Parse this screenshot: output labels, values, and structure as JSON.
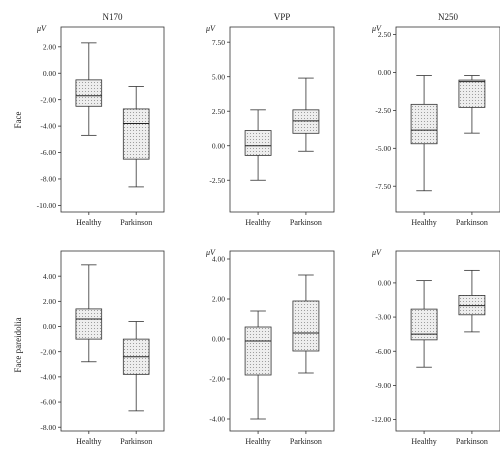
{
  "figure": {
    "row_labels": [
      "Face",
      "Face pareidolia"
    ]
  },
  "chart_data": [
    {
      "type": "box",
      "title": "N170",
      "unit": "μV",
      "ylim": [
        -10.5,
        3.5
      ],
      "yticks": [
        -10,
        -8,
        -6,
        -4,
        -2,
        0,
        2
      ],
      "ytick_labels": [
        "-10.00",
        "-8.00",
        "-6.00",
        "-4.00",
        "-2.00",
        "0.00",
        "2.00"
      ],
      "categories": [
        "Healthy",
        "Parkinson"
      ],
      "boxes": [
        {
          "min": -4.7,
          "q1": -2.5,
          "median": -1.7,
          "q3": -0.5,
          "max": 2.3
        },
        {
          "min": -8.6,
          "q1": -6.5,
          "median": -3.8,
          "q3": -2.7,
          "max": -1.0
        }
      ]
    },
    {
      "type": "box",
      "title": "VPP",
      "unit": "μV",
      "ylim": [
        -4.8,
        8.6
      ],
      "yticks": [
        -2.5,
        0,
        2.5,
        5,
        7.5
      ],
      "ytick_labels": [
        "-2.50",
        "0.00",
        "2.50",
        "5.00",
        "7.50"
      ],
      "categories": [
        "Healthy",
        "Parkinson"
      ],
      "boxes": [
        {
          "min": -2.5,
          "q1": -0.7,
          "median": 0.0,
          "q3": 1.1,
          "max": 2.6
        },
        {
          "min": -0.4,
          "q1": 0.9,
          "median": 1.8,
          "q3": 2.6,
          "max": 4.9
        }
      ]
    },
    {
      "type": "box",
      "title": "N250",
      "unit": "μV",
      "ylim": [
        -9.2,
        3.0
      ],
      "yticks": [
        -7.5,
        -5,
        -2.5,
        0,
        2.5
      ],
      "ytick_labels": [
        "-7.50",
        "-5.00",
        "-2.50",
        "0.00",
        "2.50"
      ],
      "categories": [
        "Healthy",
        "Parkinson"
      ],
      "boxes": [
        {
          "min": -7.8,
          "q1": -4.7,
          "median": -3.8,
          "q3": -2.1,
          "max": -0.2
        },
        {
          "min": -4.0,
          "q1": -2.3,
          "median": -0.6,
          "q3": -0.5,
          "max": -0.2
        }
      ]
    },
    {
      "type": "box",
      "title": "",
      "unit": "",
      "ylim": [
        -8.3,
        6.0
      ],
      "yticks": [
        -8,
        -6,
        -4,
        -2,
        0,
        2,
        4
      ],
      "ytick_labels": [
        "-8.00",
        "-6.00",
        "-4.00",
        "-2.00",
        "0.00",
        "2.00",
        "4.00"
      ],
      "categories": [
        "Healthy",
        "Parkinson"
      ],
      "boxes": [
        {
          "min": -2.8,
          "q1": -1.0,
          "median": 0.6,
          "q3": 1.4,
          "max": 4.9
        },
        {
          "min": -6.7,
          "q1": -3.8,
          "median": -2.4,
          "q3": -1.0,
          "max": 0.4
        }
      ]
    },
    {
      "type": "box",
      "title": "",
      "unit": "μV",
      "ylim": [
        -4.6,
        4.4
      ],
      "yticks": [
        -4,
        -2,
        0,
        2,
        4
      ],
      "ytick_labels": [
        "-4.00",
        "-2.00",
        "0.00",
        "2.00",
        "4.00"
      ],
      "categories": [
        "Healthy",
        "Parkinson"
      ],
      "boxes": [
        {
          "min": -4.0,
          "q1": -1.8,
          "median": -0.1,
          "q3": 0.6,
          "max": 1.4
        },
        {
          "min": -1.7,
          "q1": -0.6,
          "median": 0.3,
          "q3": 1.9,
          "max": 3.2
        }
      ]
    },
    {
      "type": "box",
      "title": "",
      "unit": "μV",
      "ylim": [
        -13.0,
        2.8
      ],
      "yticks": [
        -12,
        -9,
        -6,
        -3,
        0
      ],
      "ytick_labels": [
        "-12.00",
        "-9.00",
        "-6.00",
        "-3.00",
        "0.00"
      ],
      "categories": [
        "Healthy",
        "Parkinson"
      ],
      "boxes": [
        {
          "min": -7.4,
          "q1": -5.0,
          "median": -4.5,
          "q3": -2.3,
          "max": 0.2
        },
        {
          "min": -4.3,
          "q1": -2.8,
          "median": -2.0,
          "q3": -1.1,
          "max": 1.1
        }
      ]
    }
  ]
}
